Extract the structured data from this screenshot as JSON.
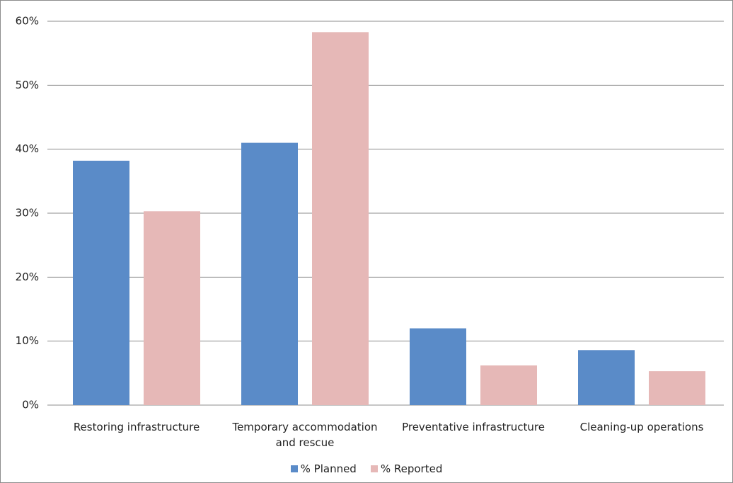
{
  "chart_data": {
    "type": "bar",
    "categories": [
      "Restoring infrastructure",
      "Temporary accommodation and rescue",
      "Preventative infrastructure",
      "Cleaning-up operations"
    ],
    "series": [
      {
        "name": "% Planned",
        "color": "#5a8bc8",
        "values": [
          38.2,
          41.0,
          12.0,
          8.6
        ]
      },
      {
        "name": "% Reported",
        "color": "#e6b8b7",
        "values": [
          30.3,
          58.3,
          6.2,
          5.3
        ]
      }
    ],
    "ylim": [
      0,
      60
    ],
    "yticks": [
      {
        "value": 0,
        "label": "0%"
      },
      {
        "value": 10,
        "label": "10%"
      },
      {
        "value": 20,
        "label": "20%"
      },
      {
        "value": 30,
        "label": "30%"
      },
      {
        "value": 40,
        "label": "40%"
      },
      {
        "value": 50,
        "label": "50%"
      },
      {
        "value": 60,
        "label": "60%"
      }
    ],
    "grid": true,
    "legend": "bottom"
  }
}
